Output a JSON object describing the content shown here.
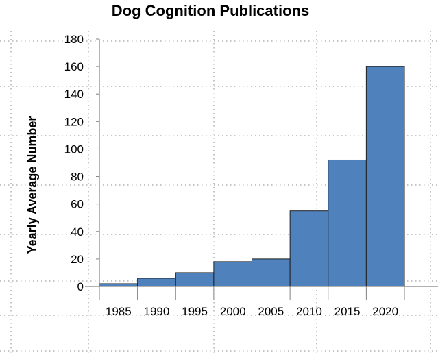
{
  "chart_data": {
    "type": "bar",
    "title": "Dog Cognition Publications",
    "xlabel": "",
    "ylabel": "Yearly Average Number",
    "categories": [
      "1985",
      "1990",
      "1995",
      "2000",
      "2005",
      "2010",
      "2015",
      "2020"
    ],
    "values": [
      2,
      6,
      10,
      18,
      20,
      55,
      92,
      160
    ],
    "ylim": [
      0,
      180
    ],
    "yticks": [
      0,
      20,
      40,
      60,
      80,
      100,
      120,
      140,
      160,
      180
    ],
    "grid": true,
    "grid_style": "dotted",
    "bar_color": "#4f81bd",
    "bar_edge_color": "#1f1f1f",
    "legend": "none"
  }
}
